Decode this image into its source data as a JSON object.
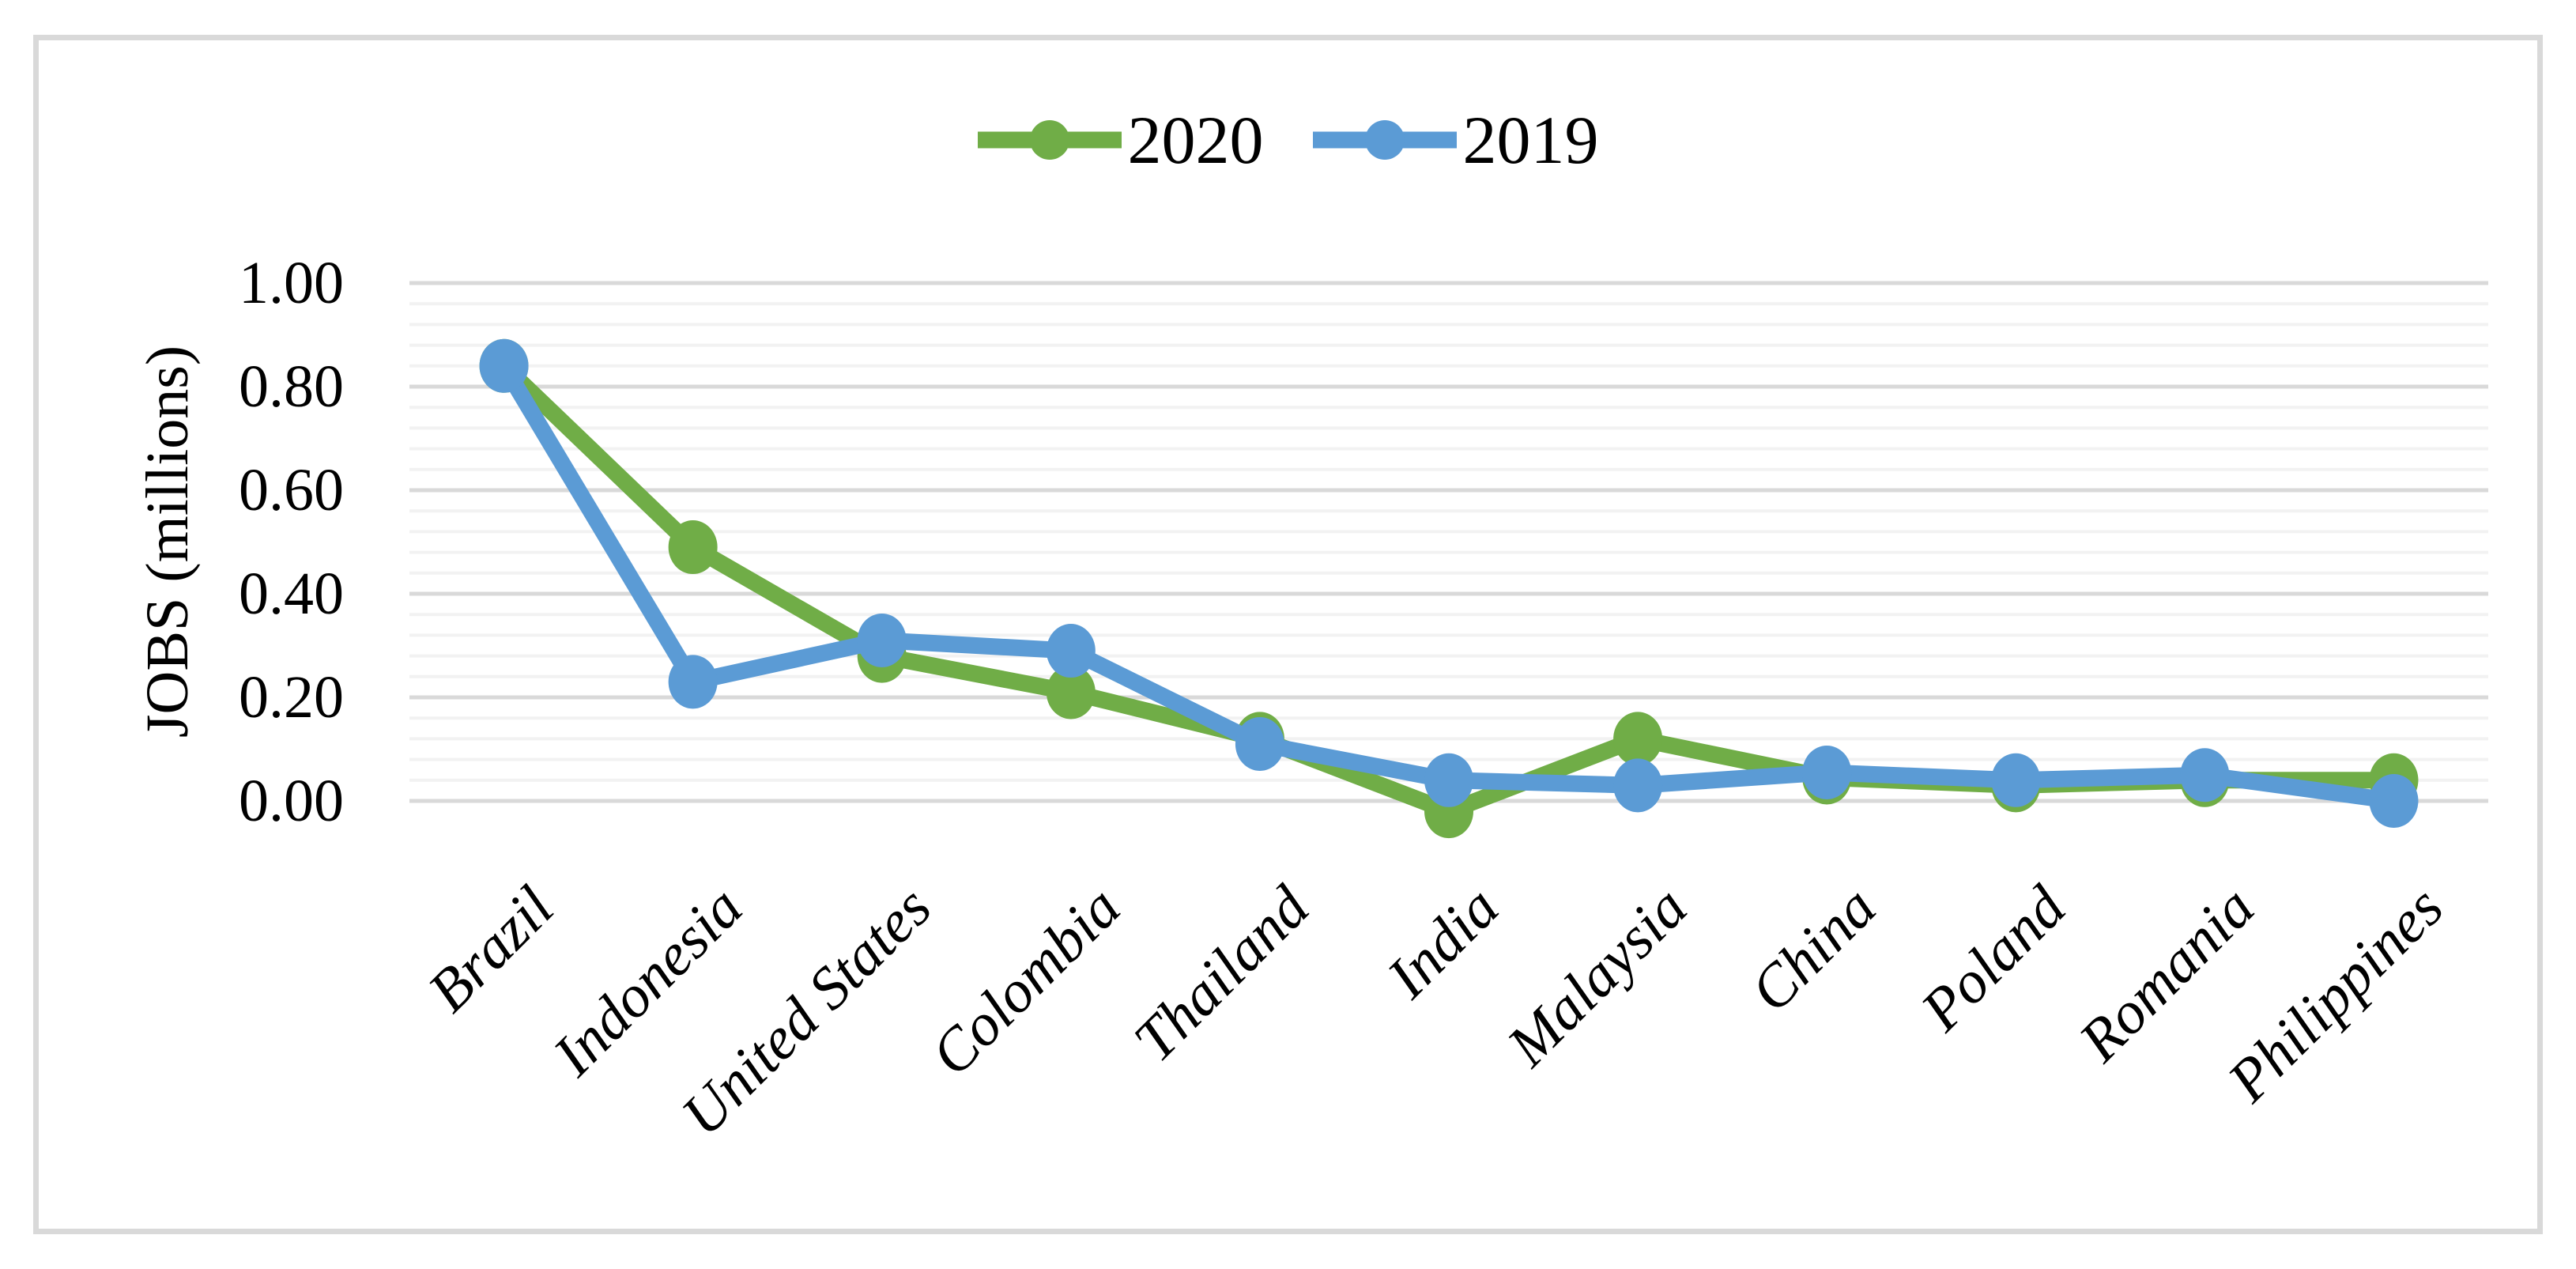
{
  "figure": {
    "background": "#FFFFFF",
    "border_color": "#D9D9D9",
    "text_color": "#000000"
  },
  "legend": {
    "position": "top-center",
    "items": [
      {
        "label": "2020",
        "color": "#70AD47"
      },
      {
        "label": "2019",
        "color": "#5B9BD5"
      }
    ]
  },
  "chart_data": {
    "type": "line",
    "title": "",
    "xlabel": "",
    "ylabel": "JOBS (millions)",
    "categories": [
      "Brazil",
      "Indonesia",
      "United States",
      "Colombia",
      "Thailand",
      "India",
      "Malaysia",
      "China",
      "Poland",
      "Romania",
      "Philippines"
    ],
    "series": [
      {
        "name": "2020",
        "color": "#70AD47",
        "values": [
          0.84,
          0.49,
          0.28,
          0.21,
          0.12,
          -0.02,
          0.12,
          0.045,
          0.03,
          0.04,
          0.04
        ]
      },
      {
        "name": "2019",
        "color": "#5B9BD5",
        "values": [
          0.84,
          0.23,
          0.31,
          0.29,
          0.11,
          0.04,
          0.03,
          0.055,
          0.04,
          0.05,
          0.0
        ]
      }
    ],
    "ylim": [
      0.0,
      1.0
    ],
    "ytick_labels": [
      "1.00",
      "0.80",
      "0.60",
      "0.40",
      "0.20",
      "0.00"
    ],
    "ytick_values": [
      1.0,
      0.8,
      0.6,
      0.4,
      0.2,
      0.0
    ],
    "major_unit": 0.2,
    "minor_unit": 0.04,
    "grid": "horizontal major+minor, no vertical gridlines, no axis ticks",
    "gridline_major_color": "#D9D9D9",
    "gridline_minor_color": "#F2F2F2",
    "legend_position": "top-center",
    "marker": "filled circle markers on both series"
  }
}
